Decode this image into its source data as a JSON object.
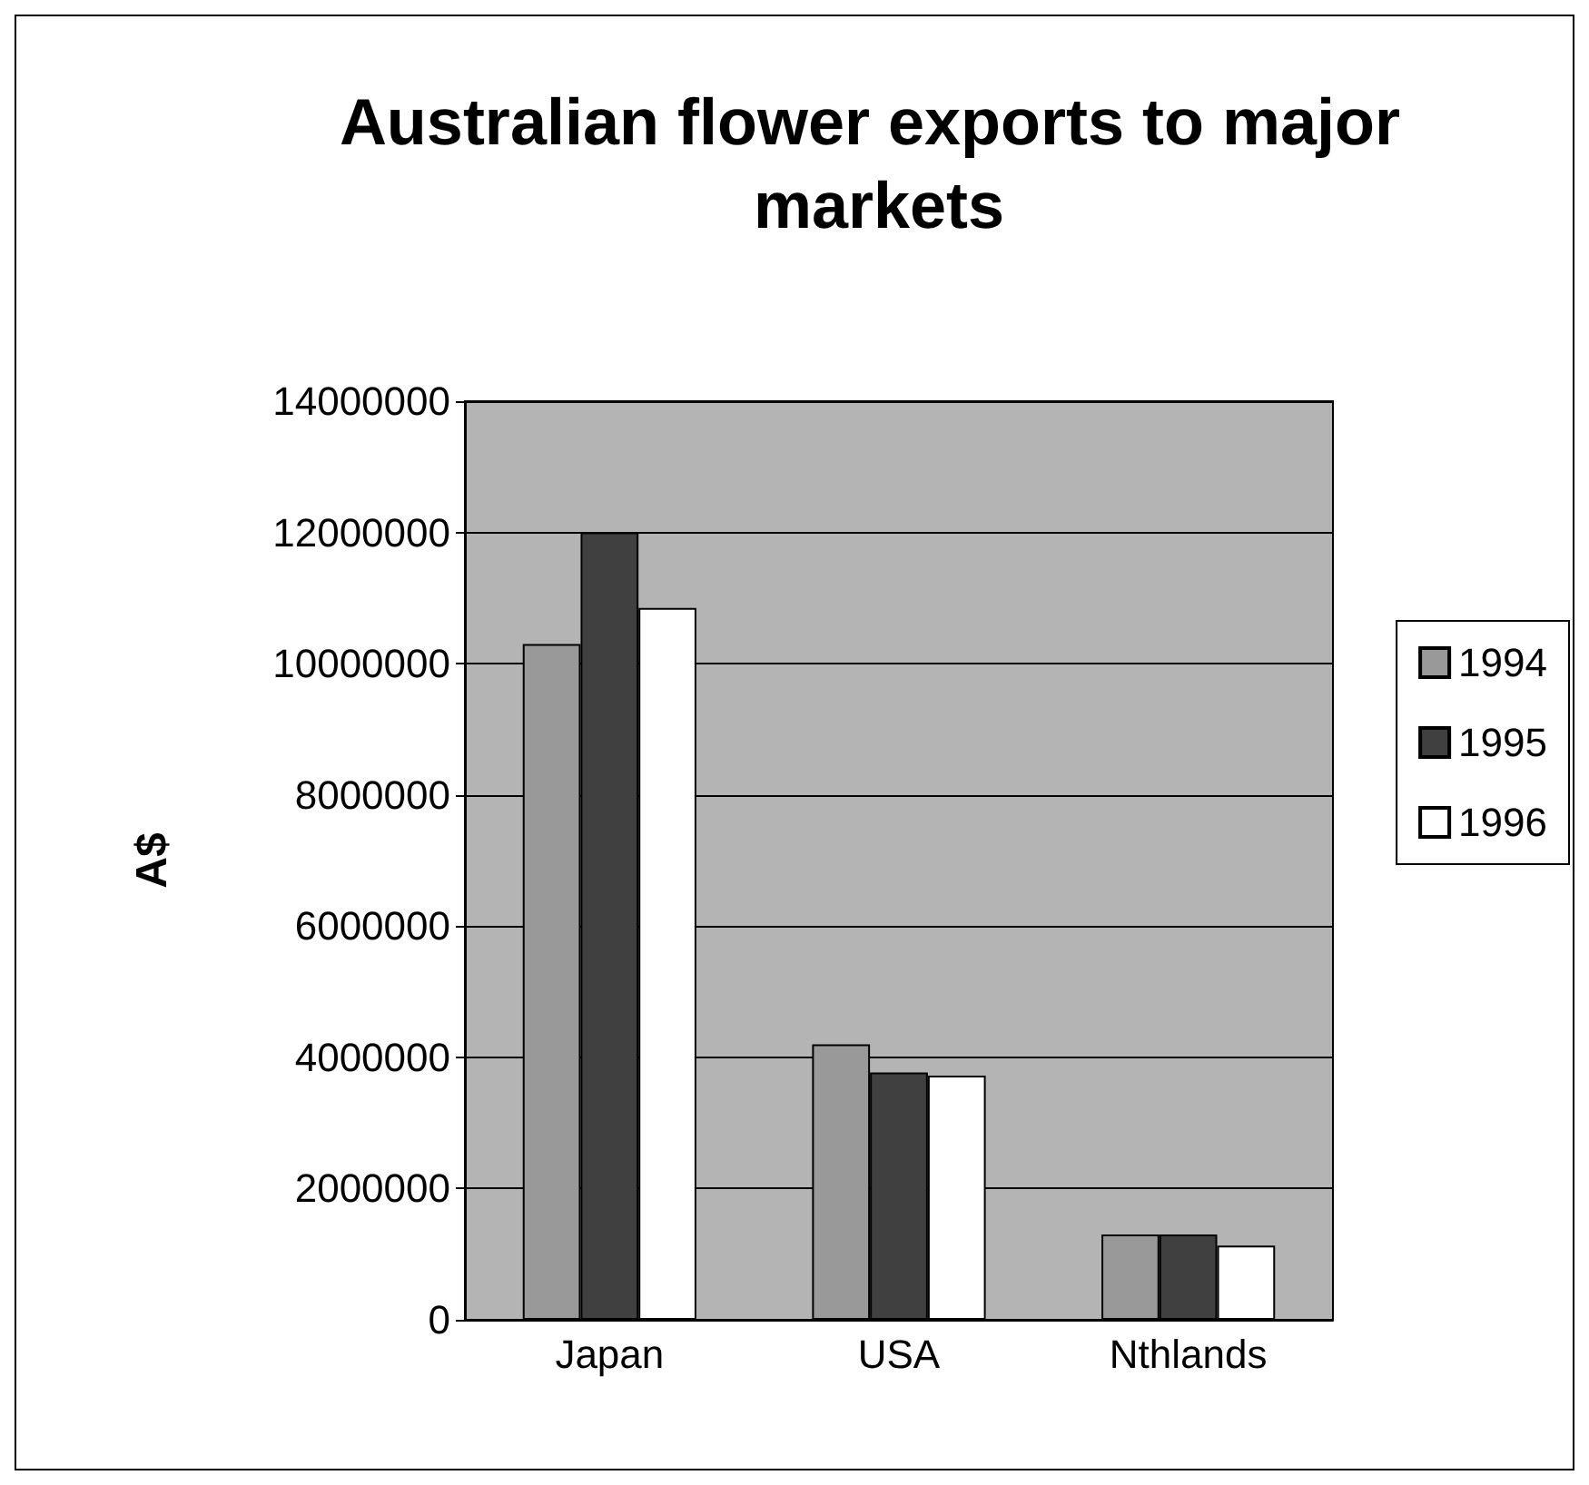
{
  "chart_data": {
    "type": "bar",
    "title": "Australian flower exports to major markets",
    "ylabel": "A$",
    "categories": [
      "Japan",
      "USA",
      "Nthlands"
    ],
    "series": [
      {
        "name": "1994",
        "color": "#999999",
        "values": [
          10300000,
          4200000,
          1300000
        ]
      },
      {
        "name": "1995",
        "color": "#404040",
        "values": [
          12000000,
          3770000,
          1300000
        ]
      },
      {
        "name": "1996",
        "color": "#ffffff",
        "values": [
          10850000,
          3720000,
          1130000
        ]
      }
    ],
    "ylim": [
      0,
      14000000
    ],
    "yticks": [
      0,
      2000000,
      4000000,
      6000000,
      8000000,
      10000000,
      12000000,
      14000000
    ],
    "grid": "y",
    "legend": "right"
  }
}
